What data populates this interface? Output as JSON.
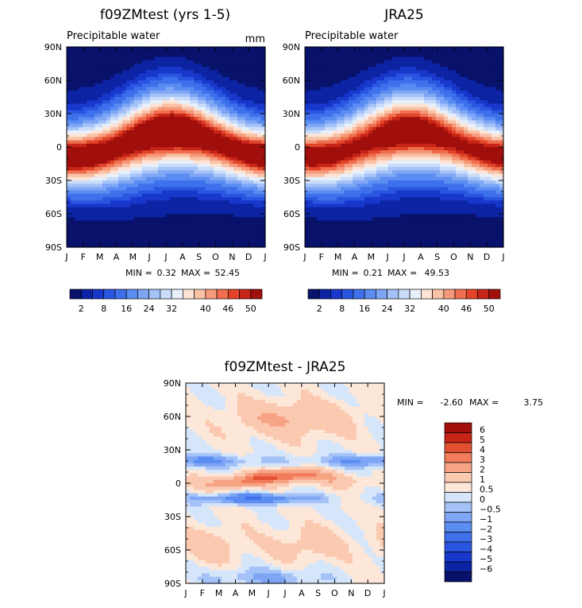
{
  "chart_data": [
    {
      "type": "heatmap",
      "title": "f09ZMtest (yrs 1-5)",
      "subtitle": "Precipitable water",
      "units": "mm",
      "x_tick_labels": [
        "J",
        "F",
        "M",
        "A",
        "M",
        "J",
        "J",
        "A",
        "S",
        "O",
        "N",
        "D",
        "J"
      ],
      "y_tick_labels": [
        "90N",
        "60N",
        "30N",
        "0",
        "30S",
        "60S",
        "90S"
      ],
      "y_range": [
        -90,
        90
      ],
      "min_label": "MIN =",
      "min_value": "0.32",
      "max_label": "MAX =",
      "max_value": "52.45",
      "equator_peak": 52,
      "itcz_lat_mean": 2,
      "colorbar": {
        "labels": [
          "2",
          "8",
          "16",
          "24",
          "32",
          "40",
          "46",
          "50"
        ],
        "levels": [
          2,
          4,
          6,
          8,
          12,
          16,
          20,
          24,
          28,
          32,
          36,
          40,
          43,
          46,
          48,
          50
        ],
        "colors": [
          "#08126b",
          "#0c24a3",
          "#1838cc",
          "#2a55e0",
          "#3e70ec",
          "#5b8cf2",
          "#7ea6f5",
          "#a4c2f8",
          "#c9dcfa",
          "#e8f0fb",
          "#fde4d6",
          "#f9c1a6",
          "#f5997a",
          "#ef6f4f",
          "#e2442a",
          "#c62417",
          "#a00f0c"
        ]
      }
    },
    {
      "type": "heatmap",
      "title": "JRA25",
      "subtitle": "Precipitable water",
      "x_tick_labels": [
        "J",
        "F",
        "M",
        "A",
        "M",
        "J",
        "J",
        "A",
        "S",
        "O",
        "N",
        "D",
        "J"
      ],
      "y_tick_labels": [
        "90N",
        "60N",
        "30N",
        "0",
        "30S",
        "60S",
        "90S"
      ],
      "y_range": [
        -90,
        90
      ],
      "min_label": "MIN =",
      "min_value": "0.21",
      "max_label": "MAX =",
      "max_value": "49.53",
      "equator_peak": 49.5,
      "itcz_lat_mean": 2,
      "colorbar": {
        "labels": [
          "2",
          "8",
          "16",
          "24",
          "32",
          "40",
          "46",
          "50"
        ],
        "levels": [
          2,
          4,
          6,
          8,
          12,
          16,
          20,
          24,
          28,
          32,
          36,
          40,
          43,
          46,
          48,
          50
        ],
        "colors": [
          "#08126b",
          "#0c24a3",
          "#1838cc",
          "#2a55e0",
          "#3e70ec",
          "#5b8cf2",
          "#7ea6f5",
          "#a4c2f8",
          "#c9dcfa",
          "#e8f0fb",
          "#fde4d6",
          "#f9c1a6",
          "#f5997a",
          "#ef6f4f",
          "#e2442a",
          "#c62417",
          "#a00f0c"
        ]
      }
    },
    {
      "type": "heatmap",
      "title": "f09ZMtest - JRA25",
      "x_tick_labels": [
        "J",
        "F",
        "M",
        "A",
        "M",
        "J",
        "J",
        "A",
        "S",
        "O",
        "N",
        "D",
        "J"
      ],
      "y_tick_labels": [
        "90N",
        "60N",
        "30N",
        "0",
        "30S",
        "60S",
        "90S"
      ],
      "y_range": [
        -90,
        90
      ],
      "min_label": "MIN =",
      "min_value": "-2.60",
      "max_label": "MAX =",
      "max_value": "3.75",
      "colorbar": {
        "labels": [
          "6",
          "5",
          "4",
          "3",
          "2",
          "1",
          "0.5",
          "0",
          "-0.5",
          "-1",
          "-2",
          "-3",
          "-4",
          "-5",
          "-6"
        ],
        "levels": [
          -6,
          -5,
          -4,
          -3,
          -2,
          -1,
          -0.5,
          0,
          0.5,
          1,
          2,
          3,
          4,
          5,
          6
        ],
        "colors": [
          "#08126b",
          "#0c24a3",
          "#1838cc",
          "#2a55e0",
          "#3e70ec",
          "#5b8cf2",
          "#7ea6f5",
          "#a4c2f8",
          "#d6e6fa",
          "#fde7d8",
          "#fbc9b0",
          "#f7a485",
          "#f07c5b",
          "#e24f31",
          "#c62417",
          "#a00f0c"
        ]
      }
    }
  ]
}
